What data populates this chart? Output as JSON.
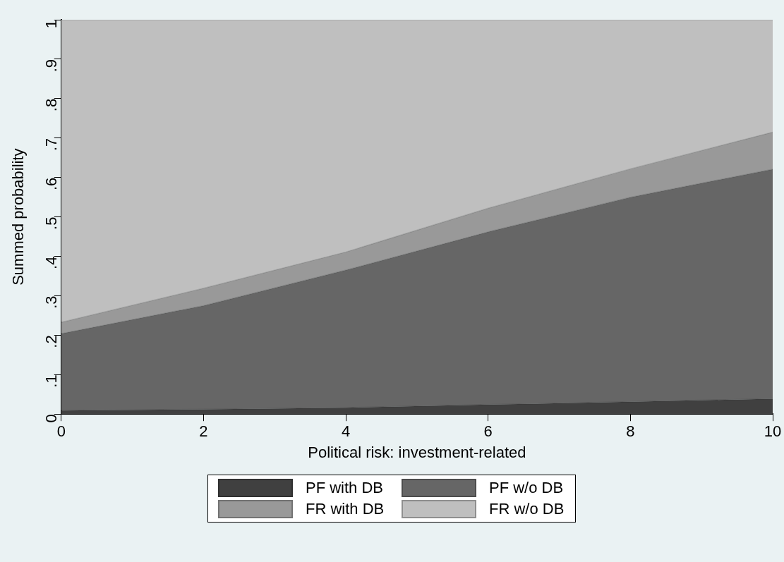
{
  "chart_data": {
    "type": "area",
    "xlabel": "Political risk: investment-related",
    "ylabel": "Summed probability",
    "stacked": true,
    "x": [
      0,
      2,
      4,
      6,
      8,
      10
    ],
    "series": [
      {
        "name": "PF with DB",
        "color": "#404040",
        "values": [
          0.009,
          0.012,
          0.016,
          0.024,
          0.031,
          0.039
        ]
      },
      {
        "name": "PF w/o DB",
        "color": "#666666",
        "values": [
          0.195,
          0.263,
          0.349,
          0.438,
          0.519,
          0.582
        ]
      },
      {
        "name": "FR with DB",
        "color": "#999999",
        "values": [
          0.029,
          0.044,
          0.046,
          0.06,
          0.072,
          0.094
        ]
      },
      {
        "name": "FR w/o DB",
        "color": "#bfbfbf",
        "values": [
          0.767,
          0.681,
          0.589,
          0.478,
          0.378,
          0.285
        ]
      }
    ],
    "xlim": [
      0,
      10
    ],
    "xticks": [
      0,
      2,
      4,
      6,
      8,
      10
    ],
    "ylim": [
      0,
      1
    ],
    "yticks": [
      0,
      {
        "value": 0.1,
        "label": ".1"
      },
      {
        "value": 0.2,
        "label": ".2"
      },
      {
        "value": 0.3,
        "label": ".3"
      },
      {
        "value": 0.4,
        "label": ".4"
      },
      {
        "value": 0.5,
        "label": ".5"
      },
      {
        "value": 0.6,
        "label": ".6"
      },
      {
        "value": 0.7,
        "label": ".7"
      },
      {
        "value": 0.8,
        "label": ".8"
      },
      {
        "value": 0.9,
        "label": ".9"
      },
      1
    ],
    "grid": false,
    "legend": "bottom"
  }
}
